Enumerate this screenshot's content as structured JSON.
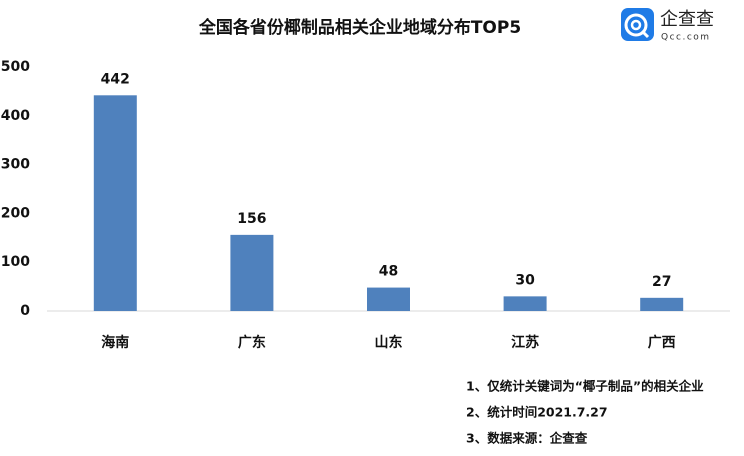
{
  "chart_data": {
    "type": "bar",
    "title": "全国各省份椰制品相关企业地域分布TOP5",
    "categories": [
      "海南",
      "广东",
      "山东",
      "江苏",
      "广西"
    ],
    "values": [
      442,
      156,
      48,
      30,
      27
    ],
    "color": "#4f81bd",
    "ylim": [
      0,
      500
    ],
    "yticks": [
      0,
      100,
      200,
      300,
      400,
      500
    ],
    "grid": false,
    "notes": [
      "1、仅统计关键词为“椰子制品”的相关企业",
      "2、统计时间2021.7.27",
      "3、数据来源：企查查"
    ],
    "brand": {
      "name": "企查查",
      "url": "Qcc.com"
    }
  }
}
